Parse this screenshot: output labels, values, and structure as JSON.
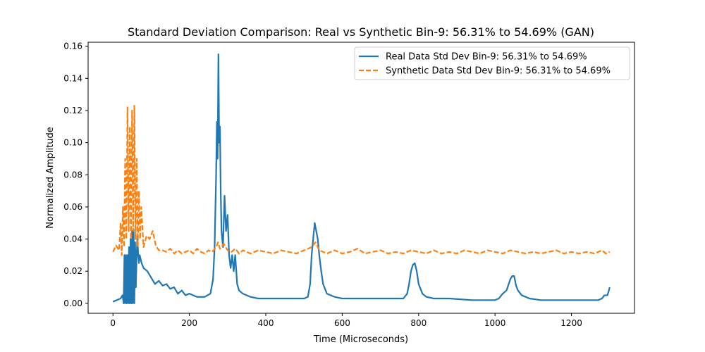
{
  "chart_data": {
    "type": "line",
    "title": "Standard Deviation Comparison: Real vs Synthetic Bin-9: 56.31% to 54.69% (GAN)",
    "xlabel": "Time (Microseconds)",
    "ylabel": "Normalized Amplitude",
    "xlim": [
      -65,
      1365
    ],
    "ylim": [
      -0.0062,
      0.1625
    ],
    "xticks": [
      0,
      200,
      400,
      600,
      800,
      1000,
      1200
    ],
    "xtick_labels": [
      "0",
      "200",
      "400",
      "600",
      "800",
      "1000",
      "1200"
    ],
    "yticks": [
      0.0,
      0.02,
      0.04,
      0.06,
      0.08,
      0.1,
      0.12,
      0.14,
      0.16
    ],
    "ytick_labels": [
      "0.00",
      "0.02",
      "0.04",
      "0.06",
      "0.08",
      "0.10",
      "0.12",
      "0.14",
      "0.16"
    ],
    "grid": false,
    "legend_position": "top-right",
    "series": [
      {
        "name": "Real Data Std Dev Bin-9: 56.31% to 54.69%",
        "color": "#1f77b4",
        "style": "solid",
        "x": [
          0,
          10,
          20,
          25,
          28,
          30,
          32,
          34,
          36,
          38,
          40,
          42,
          44,
          46,
          48,
          50,
          52,
          54,
          56,
          58,
          60,
          62,
          64,
          66,
          68,
          70,
          75,
          80,
          90,
          100,
          110,
          120,
          130,
          140,
          150,
          160,
          170,
          180,
          190,
          200,
          220,
          240,
          255,
          262,
          266,
          270,
          272,
          274,
          276,
          278,
          280,
          282,
          284,
          288,
          292,
          296,
          300,
          304,
          308,
          312,
          316,
          320,
          325,
          330,
          340,
          360,
          380,
          400,
          440,
          480,
          500,
          510,
          516,
          520,
          524,
          528,
          532,
          536,
          540,
          545,
          550,
          560,
          580,
          600,
          650,
          700,
          740,
          760,
          770,
          775,
          780,
          785,
          790,
          795,
          800,
          805,
          810,
          820,
          840,
          880,
          940,
          1000,
          1010,
          1020,
          1030,
          1040,
          1045,
          1050,
          1055,
          1060,
          1070,
          1090,
          1120,
          1160,
          1200,
          1240,
          1270,
          1280,
          1286,
          1290,
          1294,
          1298,
          1300
        ],
        "y": [
          0.001,
          0.002,
          0.003,
          0.005,
          0.0,
          0.03,
          0.0,
          0.03,
          0.0,
          0.03,
          0.0,
          0.035,
          0.0,
          0.04,
          0.0,
          0.045,
          0.0,
          0.046,
          0.0,
          0.038,
          0.01,
          0.03,
          0.042,
          0.03,
          0.025,
          0.03,
          0.025,
          0.022,
          0.02,
          0.016,
          0.012,
          0.014,
          0.011,
          0.012,
          0.009,
          0.01,
          0.006,
          0.008,
          0.005,
          0.006,
          0.004,
          0.004,
          0.006,
          0.015,
          0.035,
          0.08,
          0.113,
          0.09,
          0.155,
          0.1,
          0.11,
          0.07,
          0.045,
          0.035,
          0.067,
          0.045,
          0.055,
          0.03,
          0.022,
          0.03,
          0.02,
          0.03,
          0.012,
          0.008,
          0.006,
          0.004,
          0.003,
          0.003,
          0.003,
          0.003,
          0.003,
          0.004,
          0.012,
          0.03,
          0.04,
          0.05,
          0.045,
          0.04,
          0.03,
          0.02,
          0.012,
          0.006,
          0.004,
          0.003,
          0.003,
          0.003,
          0.003,
          0.003,
          0.006,
          0.012,
          0.02,
          0.024,
          0.025,
          0.02,
          0.012,
          0.009,
          0.006,
          0.004,
          0.003,
          0.003,
          0.002,
          0.002,
          0.003,
          0.006,
          0.008,
          0.015,
          0.017,
          0.017,
          0.011,
          0.008,
          0.005,
          0.003,
          0.002,
          0.002,
          0.002,
          0.002,
          0.002,
          0.003,
          0.005,
          0.005,
          0.005,
          0.008,
          0.01
        ]
      },
      {
        "name": "Synthetic Data Std Dev Bin-9: 56.31% to 54.69%",
        "color": "#ff7f0e",
        "style": "dashed",
        "x": [
          0,
          8,
          16,
          20,
          23,
          26,
          29,
          32,
          35,
          38,
          41,
          44,
          47,
          50,
          53,
          56,
          59,
          62,
          65,
          68,
          71,
          74,
          80,
          88,
          96,
          104,
          112,
          120,
          130,
          140,
          150,
          160,
          170,
          180,
          190,
          200,
          210,
          220,
          230,
          240,
          250,
          260,
          270,
          275,
          280,
          290,
          300,
          310,
          320,
          330,
          340,
          350,
          360,
          380,
          400,
          420,
          440,
          460,
          480,
          500,
          520,
          530,
          540,
          560,
          580,
          600,
          620,
          640,
          660,
          680,
          700,
          720,
          740,
          760,
          780,
          800,
          820,
          840,
          860,
          880,
          900,
          920,
          940,
          960,
          980,
          1000,
          1020,
          1040,
          1060,
          1080,
          1100,
          1120,
          1140,
          1160,
          1180,
          1200,
          1220,
          1240,
          1260,
          1280,
          1290,
          1300
        ],
        "y": [
          0.032,
          0.036,
          0.033,
          0.05,
          0.03,
          0.06,
          0.035,
          0.09,
          0.04,
          0.122,
          0.045,
          0.11,
          0.04,
          0.12,
          0.045,
          0.123,
          0.04,
          0.09,
          0.035,
          0.07,
          0.04,
          0.06,
          0.035,
          0.042,
          0.04,
          0.045,
          0.036,
          0.033,
          0.033,
          0.032,
          0.034,
          0.031,
          0.033,
          0.031,
          0.032,
          0.033,
          0.031,
          0.034,
          0.032,
          0.031,
          0.033,
          0.032,
          0.035,
          0.038,
          0.034,
          0.037,
          0.033,
          0.032,
          0.034,
          0.031,
          0.033,
          0.032,
          0.031,
          0.033,
          0.032,
          0.031,
          0.033,
          0.032,
          0.031,
          0.033,
          0.035,
          0.038,
          0.033,
          0.031,
          0.033,
          0.031,
          0.032,
          0.034,
          0.031,
          0.032,
          0.033,
          0.031,
          0.032,
          0.031,
          0.033,
          0.032,
          0.031,
          0.033,
          0.031,
          0.032,
          0.031,
          0.033,
          0.032,
          0.031,
          0.033,
          0.032,
          0.031,
          0.033,
          0.032,
          0.031,
          0.032,
          0.031,
          0.032,
          0.033,
          0.031,
          0.032,
          0.031,
          0.032,
          0.031,
          0.033,
          0.031,
          0.032
        ]
      }
    ]
  }
}
